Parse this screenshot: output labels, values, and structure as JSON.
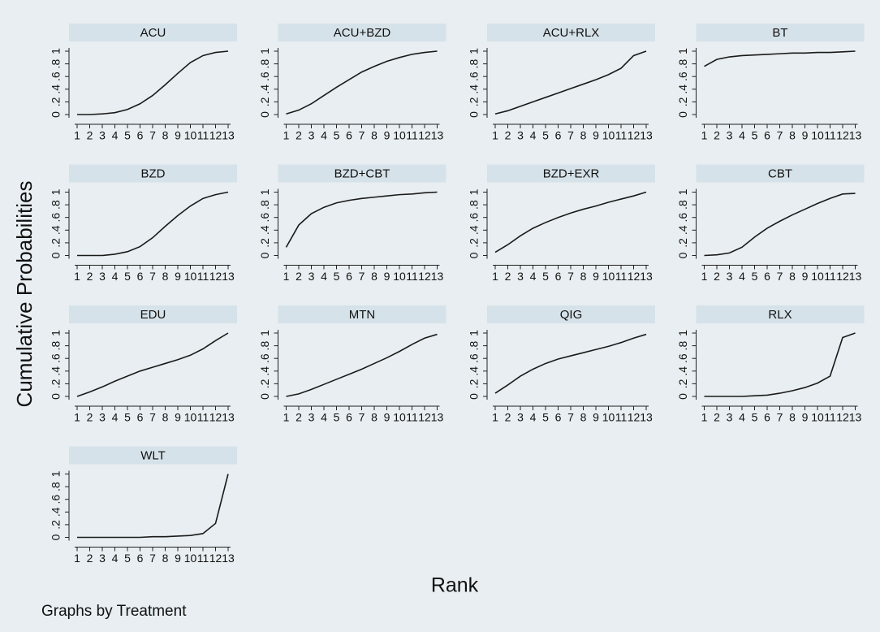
{
  "chart_data": {
    "type": "line",
    "ylabel": "Cumulative Probabilities",
    "xlabel": "Rank",
    "note": "Graphs by Treatment",
    "x": [
      1,
      2,
      3,
      4,
      5,
      6,
      7,
      8,
      9,
      10,
      11,
      12,
      13
    ],
    "xlim": [
      1,
      13
    ],
    "xticks": [
      1,
      2,
      3,
      4,
      5,
      6,
      7,
      8,
      9,
      10,
      11,
      12,
      13
    ],
    "ylim": [
      0,
      1
    ],
    "yticks": [
      0,
      {
        "value": 0.2,
        "label": ".2"
      },
      {
        "value": 0.4,
        "label": ".4"
      },
      {
        "value": 0.6,
        "label": ".6"
      },
      {
        "value": 0.8,
        "label": ".8"
      },
      1
    ],
    "color": "#1a1a1a",
    "series": [
      {
        "name": "ACU",
        "values": [
          0,
          0,
          0.01,
          0.03,
          0.08,
          0.17,
          0.3,
          0.47,
          0.65,
          0.82,
          0.93,
          0.98,
          1
        ]
      },
      {
        "name": "ACU+BZD",
        "values": [
          0.01,
          0.07,
          0.17,
          0.3,
          0.43,
          0.55,
          0.67,
          0.76,
          0.84,
          0.9,
          0.95,
          0.98,
          1
        ]
      },
      {
        "name": "ACU+RLX",
        "values": [
          0.01,
          0.06,
          0.13,
          0.2,
          0.27,
          0.34,
          0.41,
          0.48,
          0.55,
          0.63,
          0.73,
          0.93,
          1
        ]
      },
      {
        "name": "BT",
        "values": [
          0.76,
          0.87,
          0.91,
          0.93,
          0.94,
          0.95,
          0.96,
          0.97,
          0.97,
          0.98,
          0.98,
          0.99,
          1
        ]
      },
      {
        "name": "BZD",
        "values": [
          0,
          0,
          0,
          0.02,
          0.06,
          0.14,
          0.28,
          0.46,
          0.63,
          0.78,
          0.9,
          0.96,
          1
        ]
      },
      {
        "name": "BZD+CBT",
        "values": [
          0.13,
          0.48,
          0.66,
          0.76,
          0.83,
          0.87,
          0.9,
          0.92,
          0.94,
          0.96,
          0.97,
          0.99,
          1
        ]
      },
      {
        "name": "BZD+EXR",
        "values": [
          0.05,
          0.17,
          0.31,
          0.43,
          0.52,
          0.6,
          0.67,
          0.73,
          0.78,
          0.84,
          0.89,
          0.94,
          1
        ]
      },
      {
        "name": "CBT",
        "values": [
          0,
          0.01,
          0.04,
          0.13,
          0.29,
          0.43,
          0.54,
          0.64,
          0.73,
          0.82,
          0.9,
          0.97,
          0.98
        ]
      },
      {
        "name": "EDU",
        "values": [
          0,
          0.07,
          0.15,
          0.24,
          0.32,
          0.4,
          0.46,
          0.52,
          0.58,
          0.65,
          0.75,
          0.88,
          1
        ]
      },
      {
        "name": "MTN",
        "values": [
          0,
          0.04,
          0.11,
          0.19,
          0.27,
          0.35,
          0.43,
          0.52,
          0.61,
          0.71,
          0.82,
          0.92,
          0.98
        ]
      },
      {
        "name": "QIG",
        "values": [
          0.05,
          0.18,
          0.32,
          0.43,
          0.52,
          0.59,
          0.64,
          0.69,
          0.74,
          0.79,
          0.85,
          0.92,
          0.98
        ]
      },
      {
        "name": "RLX",
        "values": [
          0,
          0,
          0,
          0,
          0.01,
          0.02,
          0.05,
          0.09,
          0.14,
          0.21,
          0.32,
          0.93,
          1
        ]
      },
      {
        "name": "WLT",
        "values": [
          0,
          0,
          0,
          0,
          0,
          0,
          0.01,
          0.01,
          0.02,
          0.03,
          0.06,
          0.22,
          1
        ]
      }
    ]
  }
}
